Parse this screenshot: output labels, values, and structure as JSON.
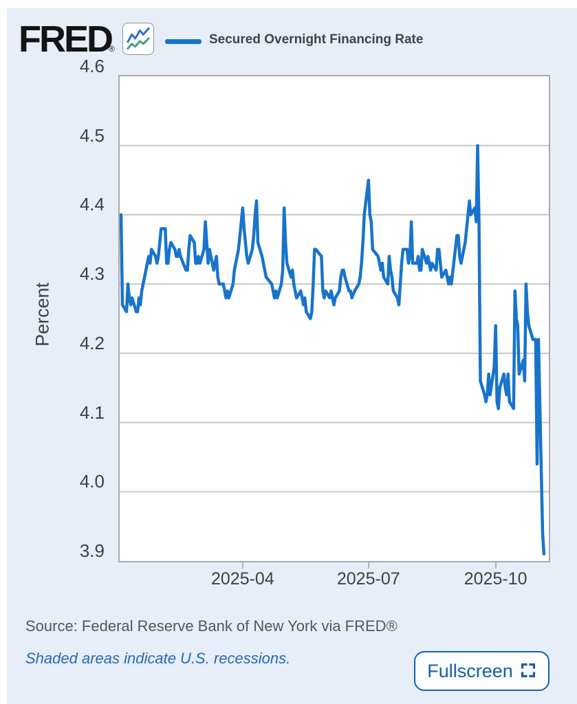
{
  "page": {
    "background_color": "#e7eef8",
    "accent_blue": "#1874cb"
  },
  "header": {
    "logo_text": "FRED",
    "registered_mark": "®",
    "logo_icon": "fred-sparkline-icon",
    "logo_icon_colors": {
      "blue_line": "#2e6fd1",
      "green_line": "#3f9e7d"
    }
  },
  "footer": {
    "source_text": "Source: Federal Reserve Bank of New York via FRED®",
    "recession_note": "Shaded areas indicate U.S. recessions.",
    "fullscreen_label": "Fullscreen"
  },
  "chart_data": {
    "type": "line",
    "title": "Secured Overnight Financing Rate",
    "xlabel": "",
    "ylabel": "Percent",
    "ylim": [
      3.9,
      4.6
    ],
    "grid": true,
    "legend_position": "top",
    "gridline_color": "#c8c8c8",
    "x_range": [
      "2025-01-02",
      "2025-11-04"
    ],
    "y_ticks": [
      {
        "label": "4.6",
        "value": 4.6
      },
      {
        "label": "4.5",
        "value": 4.5
      },
      {
        "label": "4.4",
        "value": 4.4
      },
      {
        "label": "4.3",
        "value": 4.3
      },
      {
        "label": "4.2",
        "value": 4.2
      },
      {
        "label": "4.1",
        "value": 4.1
      },
      {
        "label": "4.0",
        "value": 4.0
      },
      {
        "label": "3.9",
        "value": 3.9
      }
    ],
    "x_ticks": [
      {
        "label": "2025-04",
        "date": "2025-04-01"
      },
      {
        "label": "2025-07",
        "date": "2025-07-01"
      },
      {
        "label": "2025-10",
        "date": "2025-10-01"
      }
    ],
    "series": [
      {
        "name": "Secured Overnight Financing Rate",
        "color": "#1874cb",
        "stroke_width": 4.5,
        "points": [
          [
            "2025-01-02",
            4.4
          ],
          [
            "2025-01-03",
            4.27
          ],
          [
            "2025-01-06",
            4.26
          ],
          [
            "2025-01-07",
            4.3
          ],
          [
            "2025-01-08",
            4.28
          ],
          [
            "2025-01-09",
            4.27
          ],
          [
            "2025-01-10",
            4.28
          ],
          [
            "2025-01-13",
            4.26
          ],
          [
            "2025-01-14",
            4.26
          ],
          [
            "2025-01-15",
            4.28
          ],
          [
            "2025-01-16",
            4.27
          ],
          [
            "2025-01-17",
            4.29
          ],
          [
            "2025-01-21",
            4.33
          ],
          [
            "2025-01-22",
            4.34
          ],
          [
            "2025-01-23",
            4.33
          ],
          [
            "2025-01-24",
            4.35
          ],
          [
            "2025-01-27",
            4.34
          ],
          [
            "2025-01-28",
            4.33
          ],
          [
            "2025-01-29",
            4.34
          ],
          [
            "2025-01-30",
            4.36
          ],
          [
            "2025-01-31",
            4.38
          ],
          [
            "2025-02-03",
            4.38
          ],
          [
            "2025-02-04",
            4.33
          ],
          [
            "2025-02-05",
            4.33
          ],
          [
            "2025-02-06",
            4.35
          ],
          [
            "2025-02-07",
            4.36
          ],
          [
            "2025-02-10",
            4.35
          ],
          [
            "2025-02-11",
            4.34
          ],
          [
            "2025-02-12",
            4.34
          ],
          [
            "2025-02-13",
            4.35
          ],
          [
            "2025-02-14",
            4.34
          ],
          [
            "2025-02-18",
            4.32
          ],
          [
            "2025-02-19",
            4.32
          ],
          [
            "2025-02-20",
            4.35
          ],
          [
            "2025-02-21",
            4.37
          ],
          [
            "2025-02-24",
            4.36
          ],
          [
            "2025-02-25",
            4.33
          ],
          [
            "2025-02-26",
            4.33
          ],
          [
            "2025-02-27",
            4.34
          ],
          [
            "2025-02-28",
            4.33
          ],
          [
            "2025-03-03",
            4.35
          ],
          [
            "2025-03-04",
            4.39
          ],
          [
            "2025-03-05",
            4.36
          ],
          [
            "2025-03-06",
            4.33
          ],
          [
            "2025-03-07",
            4.35
          ],
          [
            "2025-03-10",
            4.32
          ],
          [
            "2025-03-11",
            4.33
          ],
          [
            "2025-03-12",
            4.34
          ],
          [
            "2025-03-13",
            4.31
          ],
          [
            "2025-03-14",
            4.3
          ],
          [
            "2025-03-17",
            4.3
          ],
          [
            "2025-03-18",
            4.29
          ],
          [
            "2025-03-19",
            4.28
          ],
          [
            "2025-03-20",
            4.29
          ],
          [
            "2025-03-21",
            4.28
          ],
          [
            "2025-03-24",
            4.3
          ],
          [
            "2025-03-25",
            4.32
          ],
          [
            "2025-03-26",
            4.33
          ],
          [
            "2025-03-27",
            4.34
          ],
          [
            "2025-03-28",
            4.35
          ],
          [
            "2025-03-31",
            4.41
          ],
          [
            "2025-04-01",
            4.38
          ],
          [
            "2025-04-02",
            4.36
          ],
          [
            "2025-04-03",
            4.34
          ],
          [
            "2025-04-04",
            4.33
          ],
          [
            "2025-04-07",
            4.35
          ],
          [
            "2025-04-08",
            4.37
          ],
          [
            "2025-04-09",
            4.4
          ],
          [
            "2025-04-10",
            4.42
          ],
          [
            "2025-04-11",
            4.36
          ],
          [
            "2025-04-14",
            4.34
          ],
          [
            "2025-04-15",
            4.33
          ],
          [
            "2025-04-16",
            4.32
          ],
          [
            "2025-04-17",
            4.31
          ],
          [
            "2025-04-21",
            4.3
          ],
          [
            "2025-04-22",
            4.29
          ],
          [
            "2025-04-23",
            4.28
          ],
          [
            "2025-04-24",
            4.29
          ],
          [
            "2025-04-25",
            4.28
          ],
          [
            "2025-04-28",
            4.3
          ],
          [
            "2025-04-29",
            4.32
          ],
          [
            "2025-04-30",
            4.41
          ],
          [
            "2025-05-01",
            4.36
          ],
          [
            "2025-05-02",
            4.33
          ],
          [
            "2025-05-05",
            4.31
          ],
          [
            "2025-05-06",
            4.32
          ],
          [
            "2025-05-07",
            4.3
          ],
          [
            "2025-05-08",
            4.29
          ],
          [
            "2025-05-09",
            4.28
          ],
          [
            "2025-05-12",
            4.29
          ],
          [
            "2025-05-13",
            4.28
          ],
          [
            "2025-05-14",
            4.27
          ],
          [
            "2025-05-15",
            4.28
          ],
          [
            "2025-05-16",
            4.26
          ],
          [
            "2025-05-19",
            4.25
          ],
          [
            "2025-05-20",
            4.26
          ],
          [
            "2025-05-21",
            4.3
          ],
          [
            "2025-05-22",
            4.35
          ],
          [
            "2025-05-23",
            4.35
          ],
          [
            "2025-05-27",
            4.34
          ],
          [
            "2025-05-28",
            4.29
          ],
          [
            "2025-05-29",
            4.28
          ],
          [
            "2025-05-30",
            4.29
          ],
          [
            "2025-06-02",
            4.28
          ],
          [
            "2025-06-03",
            4.29
          ],
          [
            "2025-06-04",
            4.28
          ],
          [
            "2025-06-05",
            4.27
          ],
          [
            "2025-06-06",
            4.28
          ],
          [
            "2025-06-09",
            4.29
          ],
          [
            "2025-06-10",
            4.31
          ],
          [
            "2025-06-11",
            4.32
          ],
          [
            "2025-06-12",
            4.32
          ],
          [
            "2025-06-13",
            4.31
          ],
          [
            "2025-06-16",
            4.29
          ],
          [
            "2025-06-17",
            4.29
          ],
          [
            "2025-06-18",
            4.28
          ],
          [
            "2025-06-20",
            4.29
          ],
          [
            "2025-06-23",
            4.3
          ],
          [
            "2025-06-24",
            4.31
          ],
          [
            "2025-06-25",
            4.33
          ],
          [
            "2025-06-26",
            4.36
          ],
          [
            "2025-06-27",
            4.4
          ],
          [
            "2025-06-30",
            4.45
          ],
          [
            "2025-07-01",
            4.4
          ],
          [
            "2025-07-02",
            4.39
          ],
          [
            "2025-07-03",
            4.35
          ],
          [
            "2025-07-07",
            4.34
          ],
          [
            "2025-07-08",
            4.33
          ],
          [
            "2025-07-09",
            4.32
          ],
          [
            "2025-07-10",
            4.33
          ],
          [
            "2025-07-11",
            4.31
          ],
          [
            "2025-07-14",
            4.3
          ],
          [
            "2025-07-15",
            4.34
          ],
          [
            "2025-07-16",
            4.32
          ],
          [
            "2025-07-17",
            4.31
          ],
          [
            "2025-07-18",
            4.29
          ],
          [
            "2025-07-21",
            4.28
          ],
          [
            "2025-07-22",
            4.27
          ],
          [
            "2025-07-23",
            4.3
          ],
          [
            "2025-07-24",
            4.33
          ],
          [
            "2025-07-25",
            4.35
          ],
          [
            "2025-07-28",
            4.35
          ],
          [
            "2025-07-29",
            4.33
          ],
          [
            "2025-07-30",
            4.34
          ],
          [
            "2025-07-31",
            4.39
          ],
          [
            "2025-08-01",
            4.33
          ],
          [
            "2025-08-04",
            4.33
          ],
          [
            "2025-08-05",
            4.34
          ],
          [
            "2025-08-06",
            4.32
          ],
          [
            "2025-08-07",
            4.32
          ],
          [
            "2025-08-08",
            4.35
          ],
          [
            "2025-08-11",
            4.33
          ],
          [
            "2025-08-12",
            4.34
          ],
          [
            "2025-08-13",
            4.33
          ],
          [
            "2025-08-14",
            4.32
          ],
          [
            "2025-08-15",
            4.33
          ],
          [
            "2025-08-18",
            4.32
          ],
          [
            "2025-08-19",
            4.35
          ],
          [
            "2025-08-20",
            4.35
          ],
          [
            "2025-08-21",
            4.33
          ],
          [
            "2025-08-22",
            4.31
          ],
          [
            "2025-08-25",
            4.32
          ],
          [
            "2025-08-26",
            4.31
          ],
          [
            "2025-08-27",
            4.3
          ],
          [
            "2025-08-28",
            4.31
          ],
          [
            "2025-08-29",
            4.3
          ],
          [
            "2025-09-02",
            4.37
          ],
          [
            "2025-09-03",
            4.37
          ],
          [
            "2025-09-04",
            4.34
          ],
          [
            "2025-09-05",
            4.33
          ],
          [
            "2025-09-08",
            4.36
          ],
          [
            "2025-09-09",
            4.38
          ],
          [
            "2025-09-10",
            4.4
          ],
          [
            "2025-09-11",
            4.42
          ],
          [
            "2025-09-12",
            4.4
          ],
          [
            "2025-09-15",
            4.41
          ],
          [
            "2025-09-16",
            4.39
          ],
          [
            "2025-09-17",
            4.5
          ],
          [
            "2025-09-18",
            4.39
          ],
          [
            "2025-09-19",
            4.16
          ],
          [
            "2025-09-22",
            4.14
          ],
          [
            "2025-09-23",
            4.13
          ],
          [
            "2025-09-24",
            4.14
          ],
          [
            "2025-09-25",
            4.17
          ],
          [
            "2025-09-26",
            4.14
          ],
          [
            "2025-09-29",
            4.18
          ],
          [
            "2025-09-30",
            4.24
          ],
          [
            "2025-10-01",
            4.13
          ],
          [
            "2025-10-02",
            4.12
          ],
          [
            "2025-10-03",
            4.15
          ],
          [
            "2025-10-06",
            4.17
          ],
          [
            "2025-10-07",
            4.15
          ],
          [
            "2025-10-08",
            4.14
          ],
          [
            "2025-10-09",
            4.17
          ],
          [
            "2025-10-10",
            4.13
          ],
          [
            "2025-10-13",
            4.12
          ],
          [
            "2025-10-14",
            4.29
          ],
          [
            "2025-10-15",
            4.25
          ],
          [
            "2025-10-16",
            4.24
          ],
          [
            "2025-10-17",
            4.17
          ],
          [
            "2025-10-20",
            4.19
          ],
          [
            "2025-10-21",
            4.16
          ],
          [
            "2025-10-22",
            4.3
          ],
          [
            "2025-10-23",
            4.26
          ],
          [
            "2025-10-24",
            4.24
          ],
          [
            "2025-10-27",
            4.22
          ],
          [
            "2025-10-28",
            4.22
          ],
          [
            "2025-10-29",
            4.22
          ],
          [
            "2025-10-30",
            4.04
          ],
          [
            "2025-10-31",
            4.22
          ],
          [
            "2025-11-03",
            3.94
          ],
          [
            "2025-11-04",
            3.91
          ]
        ]
      }
    ]
  }
}
